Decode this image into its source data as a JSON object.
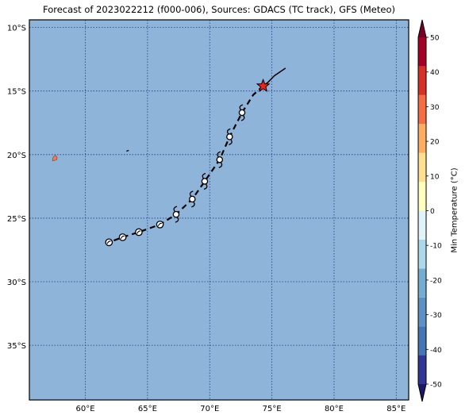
{
  "title": "Forecast of 2023022212 (f000-006), Sources: GDACS (TC track), GFS (Meteo)",
  "map": {
    "lon_range": [
      55.5,
      86
    ],
    "lat_range": [
      -39.3,
      -9.4
    ],
    "ocean_color": "#8fb4d9",
    "grid_color": "#1f3d7a",
    "lat_ticks": [
      {
        "value": -10,
        "label": "10°S"
      },
      {
        "value": -15,
        "label": "15°S"
      },
      {
        "value": -20,
        "label": "20°S"
      },
      {
        "value": -25,
        "label": "25°S"
      },
      {
        "value": -30,
        "label": "30°S"
      },
      {
        "value": -35,
        "label": "35°S"
      }
    ],
    "lon_ticks": [
      {
        "value": 60,
        "label": "60°E"
      },
      {
        "value": 65,
        "label": "65°E"
      },
      {
        "value": 70,
        "label": "70°E"
      },
      {
        "value": 75,
        "label": "75°E"
      },
      {
        "value": 80,
        "label": "80°E"
      },
      {
        "value": 85,
        "label": "85°E"
      }
    ]
  },
  "track": {
    "observed": [
      [
        76.1,
        -13.2
      ],
      [
        75.2,
        -13.8
      ],
      [
        74.7,
        -14.3
      ],
      [
        74.3,
        -14.6
      ]
    ],
    "forecast": [
      [
        74.3,
        -14.6
      ],
      [
        73.5,
        -15.3
      ],
      [
        72.6,
        -16.7
      ],
      [
        71.6,
        -18.6
      ],
      [
        70.8,
        -20.4
      ],
      [
        69.6,
        -22.1
      ],
      [
        68.6,
        -23.5
      ],
      [
        67.3,
        -24.7
      ],
      [
        66.0,
        -25.5
      ],
      [
        64.3,
        -26.1
      ],
      [
        63.0,
        -26.5
      ],
      [
        61.9,
        -26.9
      ]
    ],
    "current_position": {
      "lon": 74.3,
      "lat": -14.6,
      "color": "#e8261e"
    },
    "forecast_points": [
      {
        "lon": 72.6,
        "lat": -16.7,
        "symbol": "cyclone"
      },
      {
        "lon": 71.6,
        "lat": -18.6,
        "symbol": "cyclone"
      },
      {
        "lon": 70.8,
        "lat": -20.4,
        "symbol": "cyclone"
      },
      {
        "lon": 69.6,
        "lat": -22.1,
        "symbol": "cyclone"
      },
      {
        "lon": 68.6,
        "lat": -23.5,
        "symbol": "cyclone"
      },
      {
        "lon": 67.3,
        "lat": -24.7,
        "symbol": "cyclone"
      },
      {
        "lon": 66.0,
        "lat": -25.5,
        "symbol": "low"
      },
      {
        "lon": 64.3,
        "lat": -26.1,
        "symbol": "low"
      },
      {
        "lon": 63.0,
        "lat": -26.5,
        "symbol": "low"
      },
      {
        "lon": 61.9,
        "lat": -26.9,
        "symbol": "low"
      }
    ]
  },
  "islands": [
    {
      "name": "Mauritius",
      "lon": 57.55,
      "lat": -20.3,
      "color": "#f07a52"
    },
    {
      "name": "Rodrigues",
      "lon": 63.4,
      "lat": -19.7,
      "color": "#000000"
    }
  ],
  "colorbar": {
    "label": "Min Temperature (°C)",
    "min": -50,
    "max": 50,
    "ticks": [
      50,
      40,
      30,
      20,
      10,
      0,
      -10,
      -20,
      -30,
      -40,
      -50
    ],
    "colors": [
      "#313695",
      "#4575b4",
      "#5e90c3",
      "#74add1",
      "#abd9e9",
      "#e0f3f8",
      "#ffffbf",
      "#fee090",
      "#fdae61",
      "#f46d43",
      "#d73027",
      "#a50026"
    ],
    "under_color": "#1c1a66",
    "over_color": "#7a0023"
  }
}
